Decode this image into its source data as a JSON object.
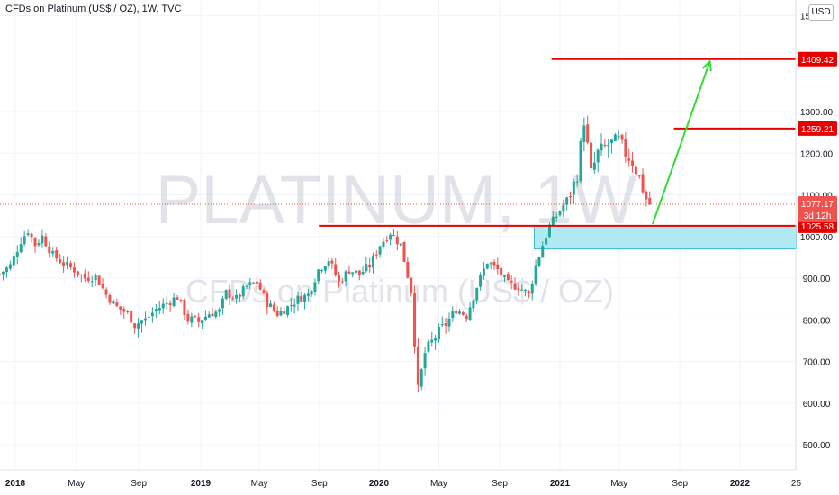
{
  "header": {
    "symbol_title": "CFDs on Platinum (US$ / OZ), 1W, TVC",
    "currency": "USD"
  },
  "watermark": {
    "symbol": "PLATINUM, 1W",
    "description": "CFDs on Platinum (US$ / OZ)"
  },
  "colors": {
    "up": "#26a69a",
    "down": "#ef5350",
    "line_red": "#e60000",
    "arrow": "#33dd33",
    "zone_fill": "#9ee3ef",
    "zone_stroke": "#3ab7d0",
    "current_price_badge": "#ef5350",
    "grid": "#f0f3fa"
  },
  "chart_data": {
    "type": "candlestick",
    "timeframe": "1W",
    "ylim": [
      450,
      1500
    ],
    "y_ticks": [
      500,
      600,
      700,
      800,
      900,
      1000,
      1100,
      1200,
      1300,
      1500
    ],
    "y_tick_labels": [
      "500.00",
      "600.00",
      "700.00",
      "800.00",
      "900.00",
      "1000.00",
      "1100.00",
      "1200.00",
      "1300.00",
      "1500.00"
    ],
    "x_ticks": [
      {
        "label": "2018",
        "date": "2018-01-01",
        "bold": true
      },
      {
        "label": "May",
        "date": "2018-05-01",
        "bold": false
      },
      {
        "label": "Sep",
        "date": "2018-09-01",
        "bold": false
      },
      {
        "label": "2019",
        "date": "2019-01-01",
        "bold": true
      },
      {
        "label": "May",
        "date": "2019-05-01",
        "bold": false
      },
      {
        "label": "Sep",
        "date": "2019-09-01",
        "bold": false
      },
      {
        "label": "2020",
        "date": "2020-01-01",
        "bold": true
      },
      {
        "label": "May",
        "date": "2020-05-01",
        "bold": false
      },
      {
        "label": "Sep",
        "date": "2020-09-01",
        "bold": false
      },
      {
        "label": "2021",
        "date": "2021-01-01",
        "bold": true
      },
      {
        "label": "May",
        "date": "2021-05-01",
        "bold": false
      },
      {
        "label": "Sep",
        "date": "2021-09-01",
        "bold": false
      },
      {
        "label": "2022",
        "date": "2022-01-01",
        "bold": true
      },
      {
        "label": "25",
        "date": "2022-04-25",
        "bold": false
      }
    ],
    "close_path": [
      [
        "2017-12-01",
        910
      ],
      [
        "2017-12-22",
        930
      ],
      [
        "2018-01-12",
        990
      ],
      [
        "2018-01-26",
        1015
      ],
      [
        "2018-02-09",
        980
      ],
      [
        "2018-02-23",
        1000
      ],
      [
        "2018-03-16",
        955
      ],
      [
        "2018-04-06",
        935
      ],
      [
        "2018-04-27",
        920
      ],
      [
        "2018-05-18",
        900
      ],
      [
        "2018-06-08",
        905
      ],
      [
        "2018-06-29",
        860
      ],
      [
        "2018-07-20",
        830
      ],
      [
        "2018-08-10",
        815
      ],
      [
        "2018-08-24",
        790
      ],
      [
        "2018-09-14",
        800
      ],
      [
        "2018-10-05",
        825
      ],
      [
        "2018-10-26",
        840
      ],
      [
        "2018-11-16",
        855
      ],
      [
        "2018-12-07",
        800
      ],
      [
        "2018-12-28",
        795
      ],
      [
        "2019-01-18",
        815
      ],
      [
        "2019-02-08",
        820
      ],
      [
        "2019-02-22",
        865
      ],
      [
        "2019-03-15",
        850
      ],
      [
        "2019-04-05",
        880
      ],
      [
        "2019-04-26",
        890
      ],
      [
        "2019-05-17",
        840
      ],
      [
        "2019-06-07",
        815
      ],
      [
        "2019-06-28",
        830
      ],
      [
        "2019-07-19",
        850
      ],
      [
        "2019-08-09",
        860
      ],
      [
        "2019-08-30",
        920
      ],
      [
        "2019-09-20",
        945
      ],
      [
        "2019-10-11",
        890
      ],
      [
        "2019-11-01",
        920
      ],
      [
        "2019-11-22",
        910
      ],
      [
        "2019-12-13",
        930
      ],
      [
        "2020-01-03",
        980
      ],
      [
        "2020-01-24",
        1010
      ],
      [
        "2020-02-14",
        980
      ],
      [
        "2020-03-06",
        870
      ],
      [
        "2020-03-20",
        630
      ],
      [
        "2020-04-03",
        720
      ],
      [
        "2020-04-24",
        760
      ],
      [
        "2020-05-15",
        790
      ],
      [
        "2020-06-05",
        825
      ],
      [
        "2020-06-26",
        810
      ],
      [
        "2020-07-17",
        880
      ],
      [
        "2020-08-07",
        940
      ],
      [
        "2020-08-28",
        920
      ],
      [
        "2020-09-18",
        885
      ],
      [
        "2020-10-09",
        880
      ],
      [
        "2020-10-30",
        860
      ],
      [
        "2020-11-13",
        930
      ],
      [
        "2020-11-27",
        980
      ],
      [
        "2020-12-11",
        1025
      ],
      [
        "2020-12-31",
        1060
      ],
      [
        "2021-01-22",
        1100
      ],
      [
        "2021-02-05",
        1150
      ],
      [
        "2021-02-19",
        1280
      ],
      [
        "2021-03-05",
        1150
      ],
      [
        "2021-03-19",
        1200
      ],
      [
        "2021-04-09",
        1220
      ],
      [
        "2021-04-30",
        1230
      ],
      [
        "2021-05-14",
        1200
      ],
      [
        "2021-05-28",
        1180
      ],
      [
        "2021-06-11",
        1140
      ],
      [
        "2021-06-25",
        1090
      ],
      [
        "2021-07-02",
        1077.17
      ]
    ],
    "last_price": 1077.17,
    "last_price_label": "1077.17",
    "countdown": "3d 12h",
    "annotations": {
      "levels": [
        {
          "price": 1409.42,
          "label": "1409.42",
          "from": "2020-12-15"
        },
        {
          "price": 1259.21,
          "label": "1259.21",
          "from": "2021-08-20"
        },
        {
          "price": 1025.58,
          "label": "1025.58",
          "from": "2019-08-31"
        }
      ],
      "demand_zone": {
        "from": "2020-11-10",
        "to": "2022-04-25",
        "low": 970,
        "high": 1025.58
      },
      "projection_arrow": {
        "from_date": "2021-07-08",
        "from_price": 1030,
        "to_date": "2021-11-01",
        "to_price": 1405
      }
    }
  }
}
